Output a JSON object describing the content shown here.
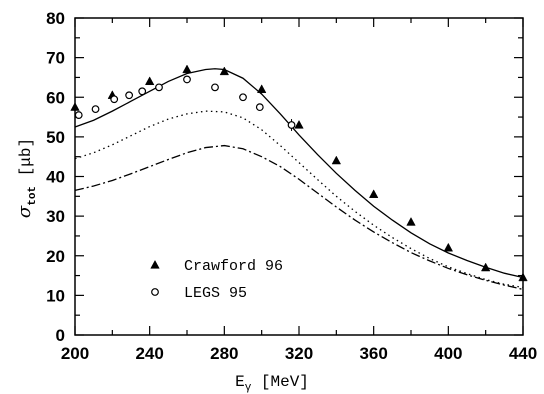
{
  "chart_data": {
    "type": "scatter",
    "xlim": [
      200,
      440
    ],
    "ylim": [
      0,
      80
    ],
    "x_ticks": [
      200,
      240,
      280,
      320,
      360,
      400,
      440
    ],
    "y_ticks": [
      0,
      10,
      20,
      30,
      40,
      50,
      60,
      70,
      80
    ],
    "xlabel": {
      "symbol": "E",
      "subscript": "γ",
      "unit": "[MeV]"
    },
    "ylabel": {
      "symbol": "σ",
      "subscript": "tot",
      "unit": "[μb]"
    },
    "legend_position": "bottom-left",
    "series": [
      {
        "name": "Crawford 96",
        "marker": "filled-triangle",
        "points": [
          {
            "x": 200,
            "y": 57.5,
            "err": 1.0
          },
          {
            "x": 220,
            "y": 60.5,
            "err": 1.0
          },
          {
            "x": 240,
            "y": 64.0,
            "err": 0.8
          },
          {
            "x": 260,
            "y": 67.0,
            "err": 1.0
          },
          {
            "x": 280,
            "y": 66.5,
            "err": 0.8
          },
          {
            "x": 300,
            "y": 62.0,
            "err": 1.0
          },
          {
            "x": 320,
            "y": 53.0,
            "err": 0.8
          },
          {
            "x": 340,
            "y": 44.0,
            "err": 0.8
          },
          {
            "x": 360,
            "y": 35.5,
            "err": 0.6
          },
          {
            "x": 380,
            "y": 28.5,
            "err": 0.5
          },
          {
            "x": 400,
            "y": 22.0,
            "err": 0.5
          },
          {
            "x": 420,
            "y": 17.0,
            "err": 0.5
          },
          {
            "x": 440,
            "y": 14.5,
            "err": 0.5
          }
        ]
      },
      {
        "name": "LEGS 95",
        "marker": "open-circle",
        "points": [
          {
            "x": 202,
            "y": 55.5,
            "err": 0
          },
          {
            "x": 211,
            "y": 57.0,
            "err": 0
          },
          {
            "x": 221,
            "y": 59.5,
            "err": 0
          },
          {
            "x": 229,
            "y": 60.5,
            "err": 0
          },
          {
            "x": 236,
            "y": 61.5,
            "err": 0
          },
          {
            "x": 245,
            "y": 62.5,
            "err": 0
          },
          {
            "x": 260,
            "y": 64.5,
            "err": 0
          },
          {
            "x": 275,
            "y": 62.5,
            "err": 0
          },
          {
            "x": 290,
            "y": 60.0,
            "err": 0
          },
          {
            "x": 299,
            "y": 57.5,
            "err": 0
          },
          {
            "x": 316,
            "y": 53.0,
            "err": 1.5
          }
        ]
      }
    ],
    "curves": [
      {
        "style": "solid",
        "x": [
          200,
          210,
          220,
          230,
          240,
          250,
          260,
          270,
          275,
          280,
          290,
          300,
          310,
          320,
          330,
          340,
          350,
          360,
          370,
          380,
          390,
          400,
          410,
          420,
          430,
          440
        ],
        "y": [
          52.5,
          54.2,
          56.5,
          59.0,
          61.5,
          64.0,
          66.0,
          67.0,
          67.2,
          67.0,
          64.8,
          60.8,
          55.8,
          50.5,
          45.5,
          40.8,
          36.5,
          32.5,
          29.0,
          25.8,
          23.0,
          20.7,
          18.8,
          17.1,
          15.6,
          14.5
        ]
      },
      {
        "style": "dotted",
        "x": [
          200,
          210,
          220,
          230,
          240,
          250,
          260,
          270,
          280,
          290,
          300,
          310,
          320,
          330,
          340,
          350,
          360,
          370,
          380,
          390,
          400,
          410,
          420,
          430,
          440
        ],
        "y": [
          44.5,
          46.0,
          48.0,
          50.3,
          52.6,
          54.5,
          55.8,
          56.5,
          56.3,
          54.8,
          51.8,
          47.8,
          43.5,
          39.2,
          35.0,
          31.2,
          27.7,
          24.6,
          21.8,
          19.3,
          17.2,
          15.5,
          14.0,
          12.8,
          12.0
        ]
      },
      {
        "style": "dashdot",
        "x": [
          200,
          210,
          220,
          230,
          240,
          250,
          260,
          270,
          280,
          290,
          300,
          310,
          320,
          330,
          340,
          350,
          360,
          370,
          380,
          390,
          400,
          410,
          420,
          430,
          440
        ],
        "y": [
          36.5,
          37.6,
          39.0,
          40.7,
          42.5,
          44.3,
          46.0,
          47.3,
          47.8,
          47.0,
          45.0,
          42.5,
          39.3,
          35.8,
          32.3,
          29.0,
          26.0,
          23.3,
          20.8,
          18.7,
          16.8,
          15.2,
          13.8,
          12.6,
          11.5
        ]
      }
    ]
  }
}
